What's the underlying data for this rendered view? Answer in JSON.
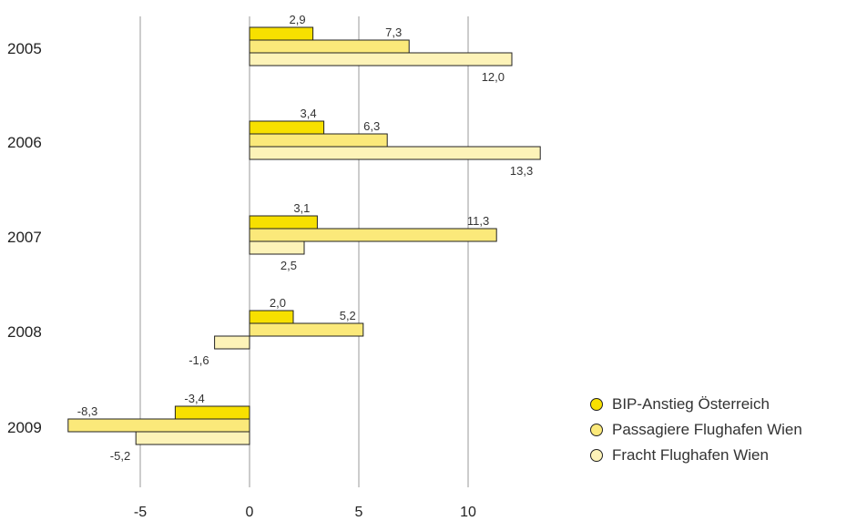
{
  "chart_data": {
    "type": "bar",
    "orientation": "horizontal",
    "categories": [
      "2005",
      "2006",
      "2007",
      "2008",
      "2009"
    ],
    "series": [
      {
        "name": "BIP-Anstieg Österreich",
        "values": [
          2.9,
          3.4,
          3.1,
          2.0,
          -3.4
        ],
        "labels": [
          "2,9",
          "3,4",
          "3,1",
          "2,0",
          "-3,4"
        ],
        "color": "#f7e000"
      },
      {
        "name": "Passagiere Flughafen Wien",
        "values": [
          7.3,
          6.3,
          11.3,
          5.2,
          -8.3
        ],
        "labels": [
          "7,3",
          "6,3",
          "11,3",
          "5,2",
          "-8,3"
        ],
        "color": "#fbe97a"
      },
      {
        "name": "Fracht Flughafen Wien",
        "values": [
          12.0,
          13.3,
          2.5,
          -1.6,
          -5.2
        ],
        "labels": [
          "12,0",
          "13,3",
          "2,5",
          "-1,6",
          "-5,2"
        ],
        "color": "#fdf3b8"
      }
    ],
    "x_ticks": [
      -5,
      0,
      5,
      10
    ],
    "x_tick_labels": [
      "-5",
      "0",
      "5",
      "10"
    ],
    "grid": true,
    "legend_position": "bottom-right"
  }
}
